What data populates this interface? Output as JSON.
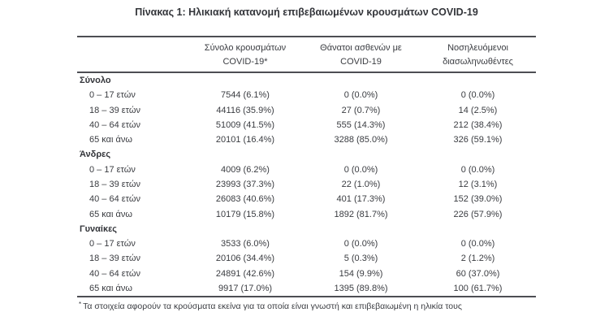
{
  "title": "Πίνακας 1: Ηλικιακή κατανομή επιβεβαιωμένων κρουσμάτων COVID-19",
  "table": {
    "columns": [
      {
        "line1": "",
        "line2": ""
      },
      {
        "line1": "Σύνολο κρουσμάτων",
        "line2": "COVID-19*"
      },
      {
        "line1": "Θάνατοι ασθενών με",
        "line2": "COVID-19"
      },
      {
        "line1": "Νοσηλευόμενοι",
        "line2": "διασωληνωθέντες"
      }
    ],
    "sections": [
      {
        "label": "Σύνολο",
        "rows": [
          {
            "label": "0 – 17 ετών",
            "cases": "7544 (6.1%)",
            "deaths": "0 (0.0%)",
            "intubated": "0 (0.0%)"
          },
          {
            "label": "18 – 39 ετών",
            "cases": "44116 (35.9%)",
            "deaths": "27 (0.7%)",
            "intubated": "14 (2.5%)"
          },
          {
            "label": "40 – 64 ετών",
            "cases": "51009 (41.5%)",
            "deaths": "555 (14.3%)",
            "intubated": "212 (38.4%)"
          },
          {
            "label": "65 και άνω",
            "cases": "20101 (16.4%)",
            "deaths": "3288 (85.0%)",
            "intubated": "326 (59.1%)"
          }
        ]
      },
      {
        "label": "Άνδρες",
        "rows": [
          {
            "label": "0 – 17 ετών",
            "cases": "4009 (6.2%)",
            "deaths": "0 (0.0%)",
            "intubated": "0 (0.0%)"
          },
          {
            "label": "18 – 39 ετών",
            "cases": "23993 (37.3%)",
            "deaths": "22 (1.0%)",
            "intubated": "12 (3.1%)"
          },
          {
            "label": "40 – 64 ετών",
            "cases": "26083 (40.6%)",
            "deaths": "401 (17.3%)",
            "intubated": "152 (39.0%)"
          },
          {
            "label": "65 και άνω",
            "cases": "10179 (15.8%)",
            "deaths": "1892 (81.7%)",
            "intubated": "226 (57.9%)"
          }
        ]
      },
      {
        "label": "Γυναίκες",
        "rows": [
          {
            "label": "0 – 17 ετών",
            "cases": "3533 (6.0%)",
            "deaths": "0 (0.0%)",
            "intubated": "0 (0.0%)"
          },
          {
            "label": "18 – 39 ετών",
            "cases": "20106 (34.4%)",
            "deaths": "5 (0.3%)",
            "intubated": "2 (1.2%)"
          },
          {
            "label": "40 – 64 ετών",
            "cases": "24891 (42.6%)",
            "deaths": "154 (9.9%)",
            "intubated": "60 (37.0%)"
          },
          {
            "label": "65 και άνω",
            "cases": "9917 (17.0%)",
            "deaths": "1395 (89.8%)",
            "intubated": "100 (61.7%)"
          }
        ]
      }
    ],
    "footnote_marker": "*",
    "footnote": "Τα στοιχεία αφορούν τα κρούσματα εκείνα για τα οποία είναι γνωστή και επιβεβαιωμένη η ηλικία τους"
  }
}
